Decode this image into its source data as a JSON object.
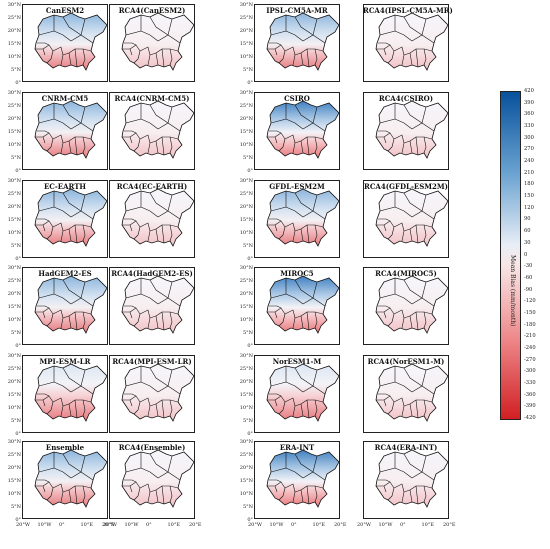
{
  "panels": [
    {
      "title": "CanESM2",
      "type": "gcm"
    },
    {
      "title": "RCA4(CanESM2)",
      "type": "rcm"
    },
    {
      "title": "IPSL-CM5A-MR",
      "type": "gcm"
    },
    {
      "title": "RCA4(IPSL-CM5A-MR)",
      "type": "rcm"
    },
    {
      "title": "CNRM-CM5",
      "type": "gcm"
    },
    {
      "title": "RCA4(CNRM-CM5)",
      "type": "rcm"
    },
    {
      "title": "CSIRO",
      "type": "gcm_strong"
    },
    {
      "title": "RCA4(CSIRO)",
      "type": "rcm"
    },
    {
      "title": "EC-EARTH",
      "type": "gcm"
    },
    {
      "title": "RCA4(EC-EARTH)",
      "type": "rcm"
    },
    {
      "title": "GFDL-ESM2M",
      "type": "gcm"
    },
    {
      "title": "RCA4(GFDL-ESM2M)",
      "type": "rcm"
    },
    {
      "title": "HadGEM2-ES",
      "type": "gcm"
    },
    {
      "title": "RCA4(HadGEM2-ES)",
      "type": "rcm"
    },
    {
      "title": "MIROC5",
      "type": "gcm_strong"
    },
    {
      "title": "RCA4(MIROC5)",
      "type": "rcm"
    },
    {
      "title": "MPI-ESM-LR",
      "type": "gcm_red"
    },
    {
      "title": "RCA4(MPI-ESM-LR)",
      "type": "rcm"
    },
    {
      "title": "NorESM1-M",
      "type": "gcm_red"
    },
    {
      "title": "RCA4(NorESM1-M)",
      "type": "rcm"
    },
    {
      "title": "Ensemble",
      "type": "gcm"
    },
    {
      "title": "RCA4(Ensemble)",
      "type": "rcm"
    },
    {
      "title": "ERA-INT",
      "type": "gcm_strong"
    },
    {
      "title": "RCA4(ERA-INT)",
      "type": "rcm"
    }
  ],
  "y_ticks": [
    "30°N",
    "25°N",
    "20°N",
    "15°N",
    "10°N",
    "5°N",
    "0°"
  ],
  "x_ticks": [
    "20°W",
    "10°W",
    "0°",
    "10°E",
    "20°E"
  ],
  "colorbar": {
    "title": "Mean Bias (mm/month)",
    "ticks": [
      420,
      390,
      360,
      330,
      300,
      270,
      240,
      210,
      180,
      150,
      120,
      90,
      60,
      30,
      0,
      -30,
      -60,
      -90,
      -120,
      -150,
      -180,
      -210,
      -240,
      -270,
      -300,
      -330,
      -360,
      -390,
      -420
    ],
    "min": -420,
    "max": 420,
    "positive_color": "#1f5fa8",
    "negative_color": "#d7262a"
  }
}
